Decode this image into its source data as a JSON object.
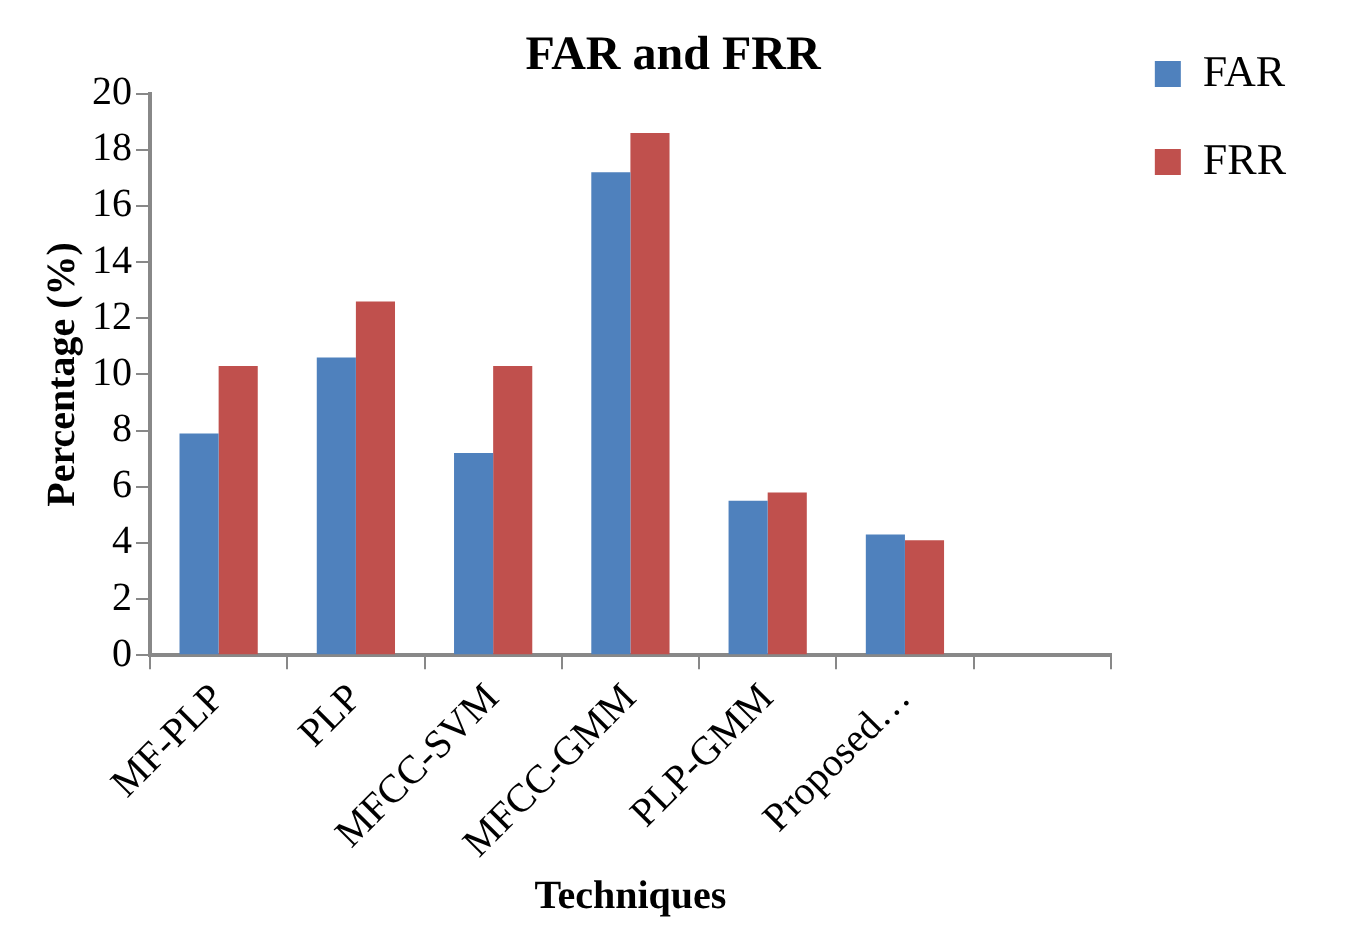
{
  "chart_data": {
    "type": "bar",
    "title": "FAR and FRR",
    "xlabel": "Techniques",
    "ylabel": "Percentage (%)",
    "categories": [
      "MF-PLP",
      "PLP",
      "MFCC-SVM",
      "MFCC-GMM",
      "PLP-GMM",
      "Proposed…",
      null
    ],
    "series": [
      {
        "name": "FAR",
        "color": "#4f81bd",
        "values": [
          7.9,
          10.6,
          7.2,
          17.2,
          5.5,
          4.3,
          null
        ]
      },
      {
        "name": "FRR",
        "color": "#c0504d",
        "values": [
          10.3,
          12.6,
          10.3,
          18.6,
          5.8,
          4.1,
          null
        ]
      }
    ],
    "ylim": [
      0,
      20
    ],
    "yticks": [
      0,
      2,
      4,
      6,
      8,
      10,
      12,
      14,
      16,
      18,
      20
    ],
    "grid": false,
    "legend": "top right"
  }
}
